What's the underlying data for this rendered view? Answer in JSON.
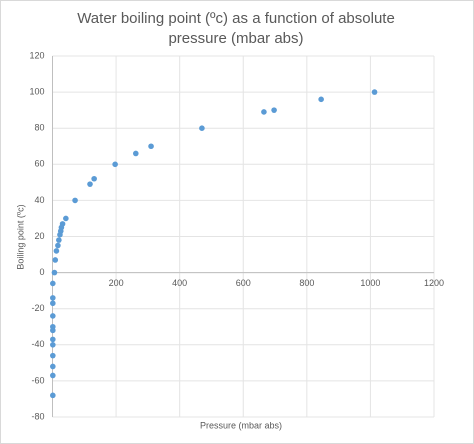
{
  "chart_data": {
    "type": "scatter",
    "title": "Water boiling point (ºc) as a function of absolute pressure (mbar abs)",
    "x_label": "Pressure (mbar abs)",
    "y_label": "Boiling point (ºc)",
    "color": "#5b9bd5",
    "grid": true,
    "xlim": [
      0,
      1200
    ],
    "xticks": [
      0,
      200,
      400,
      600,
      800,
      1000,
      1200
    ],
    "ylim": [
      -80,
      120
    ],
    "yticks": [
      -80,
      -60,
      -40,
      -20,
      0,
      20,
      40,
      60,
      80,
      100,
      120
    ],
    "x": [
      1013,
      845,
      697,
      665,
      470,
      310,
      262,
      197,
      131,
      118,
      71,
      42,
      31.7,
      28,
      26,
      23.4,
      20,
      17,
      12.3,
      8.7,
      6.1,
      1,
      1,
      1,
      1,
      1,
      1,
      1,
      1,
      1,
      1,
      1,
      1
    ],
    "values": [
      100,
      96,
      90,
      89,
      80,
      70,
      66,
      60,
      52,
      49,
      40,
      30,
      27,
      25,
      23,
      21,
      18,
      15,
      12,
      7,
      0,
      -6,
      -14,
      -17,
      -24,
      -30,
      -32,
      -37,
      -40,
      -46,
      -52,
      -57,
      -68
    ]
  }
}
